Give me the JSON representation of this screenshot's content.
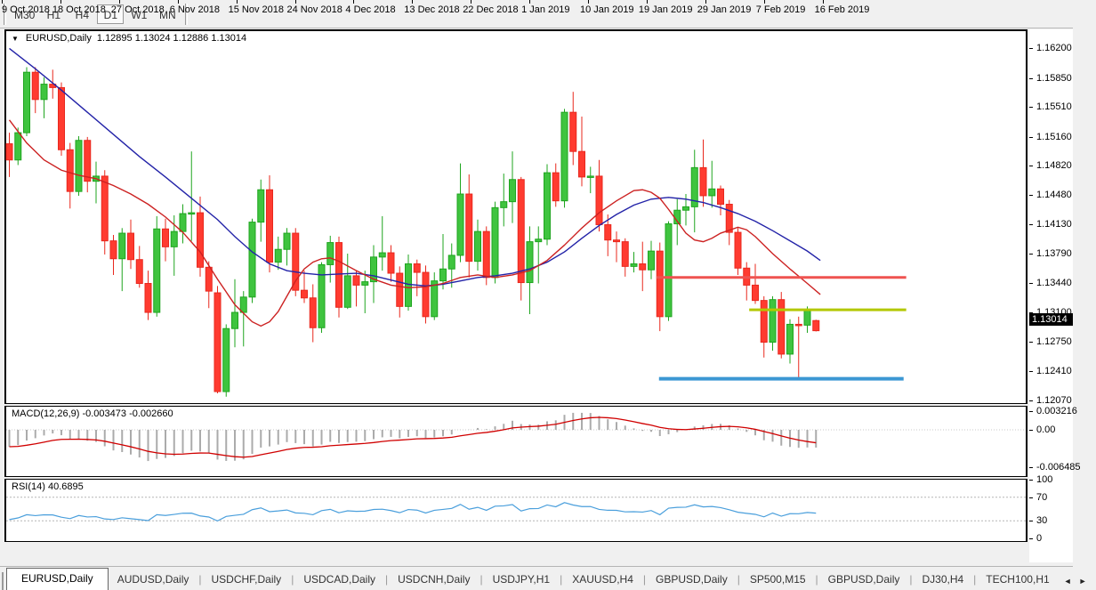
{
  "toolbar": {
    "timeframes": [
      {
        "label": "M30",
        "active": false
      },
      {
        "label": "H1",
        "active": false
      },
      {
        "label": "H4",
        "active": false
      },
      {
        "label": "D1",
        "active": true
      },
      {
        "label": "W1",
        "active": false
      },
      {
        "label": "MN",
        "active": false
      }
    ]
  },
  "chart_header": {
    "dropdown_icon": "▼",
    "symbol": "EURUSD,Daily",
    "ohlc_text": "1.12895 1.13024 1.12886 1.13014"
  },
  "price_axis": {
    "ticks": [
      "1.16200",
      "1.15850",
      "1.15510",
      "1.15160",
      "1.14820",
      "1.14480",
      "1.14130",
      "1.13790",
      "1.13440",
      "1.13100",
      "1.12750",
      "1.12410",
      "1.12070"
    ],
    "current_price": "1.13014"
  },
  "indicators": {
    "macd": {
      "label": "MACD(12,26,9) -0.003473 -0.002660",
      "axis": [
        "0.003216",
        "0.00",
        "-0.006485"
      ]
    },
    "rsi": {
      "label": "RSI(14) 40.6895",
      "axis": [
        "100",
        "70",
        "30",
        "0"
      ]
    }
  },
  "date_axis": {
    "labels": [
      "9 Oct 2018",
      "18 Oct 2018",
      "27 Oct 2018",
      "6 Nov 2018",
      "15 Nov 2018",
      "24 Nov 2018",
      "4 Dec 2018",
      "13 Dec 2018",
      "22 Dec 2018",
      "1 Jan 2019",
      "10 Jan 2019",
      "19 Jan 2019",
      "29 Jan 2019",
      "7 Feb 2019",
      "16 Feb 2019"
    ]
  },
  "tabs": {
    "items": [
      {
        "label": "EURUSD,Daily",
        "active": true
      },
      {
        "label": "AUDUSD,Daily",
        "active": false
      },
      {
        "label": "USDCHF,Daily",
        "active": false
      },
      {
        "label": "USDCAD,Daily",
        "active": false
      },
      {
        "label": "USDCNH,Daily",
        "active": false
      },
      {
        "label": "USDJPY,H1",
        "active": false
      },
      {
        "label": "XAUUSD,H4",
        "active": false
      },
      {
        "label": "GBPUSD,Daily",
        "active": false
      },
      {
        "label": "SP500,M15",
        "active": false
      },
      {
        "label": "GBPUSD,Daily",
        "active": false
      },
      {
        "label": "DJ30,H4",
        "active": false
      },
      {
        "label": "TECH100,H1",
        "active": false
      }
    ],
    "scroll_left": "◄",
    "scroll_right": "►"
  },
  "chart_data": {
    "type": "candlestick",
    "symbol": "EURUSD",
    "timeframe": "Daily",
    "last_bar": {
      "open": 1.12895,
      "high": 1.13024,
      "low": 1.12886,
      "close": 1.13014
    },
    "price_ticks": [
      1.162,
      1.1585,
      1.1551,
      1.1516,
      1.1482,
      1.1448,
      1.1413,
      1.1379,
      1.1344,
      1.131,
      1.1275,
      1.1241,
      1.1207
    ],
    "x_labels": [
      "9 Oct 2018",
      "18 Oct 2018",
      "27 Oct 2018",
      "6 Nov 2018",
      "15 Nov 2018",
      "24 Nov 2018",
      "4 Dec 2018",
      "13 Dec 2018",
      "22 Dec 2018",
      "1 Jan 2019",
      "10 Jan 2019",
      "19 Jan 2019",
      "29 Jan 2019",
      "7 Feb 2019",
      "16 Feb 2019"
    ],
    "candles": [
      [
        1.1509,
        1.1522,
        1.147,
        1.149
      ],
      [
        1.149,
        1.1528,
        1.1484,
        1.1522
      ],
      [
        1.1522,
        1.1599,
        1.1518,
        1.1593
      ],
      [
        1.1593,
        1.1599,
        1.1545,
        1.1561
      ],
      [
        1.1561,
        1.1587,
        1.1539,
        1.1579
      ],
      [
        1.1579,
        1.1596,
        1.1562,
        1.1575
      ],
      [
        1.1575,
        1.1581,
        1.1495,
        1.1502
      ],
      [
        1.1502,
        1.151,
        1.1433,
        1.1453
      ],
      [
        1.1453,
        1.1518,
        1.1448,
        1.1513
      ],
      [
        1.1513,
        1.1517,
        1.1452,
        1.1465
      ],
      [
        1.1465,
        1.1488,
        1.1439,
        1.1471
      ],
      [
        1.1471,
        1.1478,
        1.1379,
        1.1395
      ],
      [
        1.1395,
        1.1402,
        1.1355,
        1.1374
      ],
      [
        1.1374,
        1.141,
        1.1336,
        1.1404
      ],
      [
        1.1404,
        1.142,
        1.1362,
        1.1373
      ],
      [
        1.1373,
        1.1389,
        1.134,
        1.1345
      ],
      [
        1.1345,
        1.136,
        1.1302,
        1.1311
      ],
      [
        1.1311,
        1.1424,
        1.1306,
        1.1409
      ],
      [
        1.1409,
        1.1421,
        1.1371,
        1.1388
      ],
      [
        1.1388,
        1.1425,
        1.1354,
        1.1406
      ],
      [
        1.1406,
        1.1438,
        1.1392,
        1.1427
      ],
      [
        1.1427,
        1.15,
        1.1395,
        1.1428
      ],
      [
        1.1428,
        1.1447,
        1.1353,
        1.1364
      ],
      [
        1.1364,
        1.1371,
        1.1316,
        1.1336
      ],
      [
        1.1334,
        1.1342,
        1.1216,
        1.1218
      ],
      [
        1.1218,
        1.1297,
        1.1212,
        1.1292
      ],
      [
        1.1292,
        1.135,
        1.127,
        1.1311
      ],
      [
        1.1311,
        1.1336,
        1.1271,
        1.1329
      ],
      [
        1.1329,
        1.1421,
        1.1322,
        1.1417
      ],
      [
        1.1417,
        1.1467,
        1.1394,
        1.1455
      ],
      [
        1.1455,
        1.1472,
        1.1358,
        1.137
      ],
      [
        1.137,
        1.14,
        1.1361,
        1.1385
      ],
      [
        1.1385,
        1.141,
        1.1366,
        1.1404
      ],
      [
        1.1404,
        1.141,
        1.133,
        1.1337
      ],
      [
        1.1337,
        1.136,
        1.1322,
        1.1328
      ],
      [
        1.1328,
        1.1344,
        1.1276,
        1.1293
      ],
      [
        1.1293,
        1.137,
        1.1287,
        1.1367
      ],
      [
        1.1367,
        1.1401,
        1.1346,
        1.1393
      ],
      [
        1.1393,
        1.14,
        1.1305,
        1.1317
      ],
      [
        1.1317,
        1.138,
        1.1315,
        1.1354
      ],
      [
        1.1354,
        1.136,
        1.1318,
        1.1343
      ],
      [
        1.1343,
        1.136,
        1.131,
        1.1347
      ],
      [
        1.1347,
        1.139,
        1.1322,
        1.1376
      ],
      [
        1.1376,
        1.1424,
        1.136,
        1.1381
      ],
      [
        1.1381,
        1.139,
        1.1347,
        1.1357
      ],
      [
        1.1357,
        1.1365,
        1.1305,
        1.1318
      ],
      [
        1.1318,
        1.1379,
        1.1313,
        1.1368
      ],
      [
        1.1368,
        1.1373,
        1.133,
        1.1358
      ],
      [
        1.1358,
        1.1366,
        1.1298,
        1.1306
      ],
      [
        1.1306,
        1.1358,
        1.1302,
        1.1348
      ],
      [
        1.1348,
        1.1403,
        1.1338,
        1.1362
      ],
      [
        1.1362,
        1.1392,
        1.134,
        1.1378
      ],
      [
        1.1378,
        1.1486,
        1.137,
        1.145
      ],
      [
        1.145,
        1.1473,
        1.1352,
        1.1371
      ],
      [
        1.1371,
        1.142,
        1.136,
        1.1406
      ],
      [
        1.1406,
        1.1412,
        1.1343,
        1.1352
      ],
      [
        1.1352,
        1.1441,
        1.1345,
        1.1434
      ],
      [
        1.1434,
        1.1474,
        1.1412,
        1.1441
      ],
      [
        1.1441,
        1.15,
        1.1416,
        1.1467
      ],
      [
        1.1467,
        1.147,
        1.1325,
        1.1346
      ],
      [
        1.1346,
        1.1412,
        1.1309,
        1.1394
      ],
      [
        1.1394,
        1.1412,
        1.1345,
        1.1397
      ],
      [
        1.1397,
        1.1485,
        1.139,
        1.1475
      ],
      [
        1.1475,
        1.1486,
        1.1435,
        1.1442
      ],
      [
        1.1442,
        1.155,
        1.1434,
        1.1546
      ],
      [
        1.1546,
        1.157,
        1.1484,
        1.15
      ],
      [
        1.15,
        1.1541,
        1.1459,
        1.147
      ],
      [
        1.147,
        1.1482,
        1.1451,
        1.1471
      ],
      [
        1.1471,
        1.149,
        1.1406,
        1.1414
      ],
      [
        1.1414,
        1.1426,
        1.1377,
        1.1396
      ],
      [
        1.1396,
        1.1406,
        1.137,
        1.1394
      ],
      [
        1.1394,
        1.1398,
        1.1353,
        1.1365
      ],
      [
        1.1365,
        1.1382,
        1.1358,
        1.1368
      ],
      [
        1.1368,
        1.1394,
        1.1336,
        1.1361
      ],
      [
        1.1361,
        1.1395,
        1.135,
        1.1383
      ],
      [
        1.1383,
        1.1393,
        1.1289,
        1.1306
      ],
      [
        1.1306,
        1.1418,
        1.1301,
        1.1415
      ],
      [
        1.1415,
        1.1444,
        1.139,
        1.1431
      ],
      [
        1.1431,
        1.145,
        1.1413,
        1.1435
      ],
      [
        1.1435,
        1.1502,
        1.1405,
        1.1481
      ],
      [
        1.1481,
        1.1514,
        1.1435,
        1.1448
      ],
      [
        1.1448,
        1.1489,
        1.1434,
        1.1456
      ],
      [
        1.1456,
        1.146,
        1.1425,
        1.1438
      ],
      [
        1.1438,
        1.1443,
        1.139,
        1.1405
      ],
      [
        1.1405,
        1.141,
        1.1355,
        1.1363
      ],
      [
        1.1363,
        1.137,
        1.1325,
        1.1343
      ],
      [
        1.1343,
        1.1368,
        1.1321,
        1.1325
      ],
      [
        1.1325,
        1.133,
        1.1258,
        1.1276
      ],
      [
        1.1276,
        1.133,
        1.1266,
        1.1326
      ],
      [
        1.1326,
        1.1335,
        1.1257,
        1.1262
      ],
      [
        1.1262,
        1.1303,
        1.1251,
        1.1297
      ],
      [
        1.1297,
        1.1306,
        1.1234,
        1.1296
      ],
      [
        1.1296,
        1.1318,
        1.1287,
        1.1313
      ],
      [
        1.12895,
        1.13024,
        1.12886,
        1.13014,
        "r"
      ]
    ],
    "overlays": {
      "ma_blue": {
        "color": "#2323a8",
        "points": [
          [
            0,
            1.1621
          ],
          [
            3,
            1.1597
          ],
          [
            6,
            1.1572
          ],
          [
            9,
            1.1546
          ],
          [
            12,
            1.152
          ],
          [
            15,
            1.1494
          ],
          [
            18,
            1.147
          ],
          [
            21,
            1.1445
          ],
          [
            24,
            1.142
          ],
          [
            26,
            1.14
          ],
          [
            28,
            1.1382
          ],
          [
            30,
            1.1368
          ],
          [
            32,
            1.136
          ],
          [
            34,
            1.1357
          ],
          [
            36,
            1.1355
          ],
          [
            38,
            1.1356
          ],
          [
            40,
            1.1357
          ],
          [
            42,
            1.1354
          ],
          [
            44,
            1.1349
          ],
          [
            46,
            1.1344
          ],
          [
            48,
            1.1342
          ],
          [
            50,
            1.1344
          ],
          [
            52,
            1.1348
          ],
          [
            54,
            1.1352
          ],
          [
            56,
            1.1354
          ],
          [
            58,
            1.1357
          ],
          [
            60,
            1.1362
          ],
          [
            62,
            1.137
          ],
          [
            64,
            1.1382
          ],
          [
            66,
            1.1398
          ],
          [
            68,
            1.1413
          ],
          [
            70,
            1.1426
          ],
          [
            72,
            1.1437
          ],
          [
            74,
            1.1444
          ],
          [
            76,
            1.1446
          ],
          [
            78,
            1.1444
          ],
          [
            80,
            1.144
          ],
          [
            82,
            1.1434
          ],
          [
            84,
            1.1427
          ],
          [
            86,
            1.1418
          ],
          [
            88,
            1.1407
          ],
          [
            90,
            1.1395
          ],
          [
            92,
            1.1383
          ],
          [
            93.5,
            1.1372
          ]
        ]
      },
      "ma_red": {
        "color": "#cc2222",
        "points": [
          [
            0,
            1.1537
          ],
          [
            2,
            1.151
          ],
          [
            4,
            1.149
          ],
          [
            6,
            1.1478
          ],
          [
            8,
            1.1472
          ],
          [
            10,
            1.1468
          ],
          [
            12,
            1.146
          ],
          [
            14,
            1.145
          ],
          [
            16,
            1.1438
          ],
          [
            18,
            1.1423
          ],
          [
            20,
            1.1405
          ],
          [
            22,
            1.1382
          ],
          [
            24,
            1.135
          ],
          [
            26,
            1.132
          ],
          [
            28,
            1.13
          ],
          [
            29,
            1.1295
          ],
          [
            30,
            1.13
          ],
          [
            31,
            1.1312
          ],
          [
            32,
            1.133
          ],
          [
            33,
            1.1348
          ],
          [
            34,
            1.1362
          ],
          [
            35,
            1.137
          ],
          [
            36,
            1.1374
          ],
          [
            37,
            1.1375
          ],
          [
            38,
            1.1371
          ],
          [
            40,
            1.136
          ],
          [
            42,
            1.135
          ],
          [
            44,
            1.1343
          ],
          [
            46,
            1.134
          ],
          [
            48,
            1.1341
          ],
          [
            50,
            1.1345
          ],
          [
            52,
            1.1352
          ],
          [
            54,
            1.1355
          ],
          [
            56,
            1.1352
          ],
          [
            58,
            1.1355
          ],
          [
            60,
            1.136
          ],
          [
            62,
            1.1372
          ],
          [
            64,
            1.139
          ],
          [
            66,
            1.141
          ],
          [
            68,
            1.1428
          ],
          [
            70,
            1.1442
          ],
          [
            72,
            1.1454
          ],
          [
            73,
            1.1455
          ],
          [
            74,
            1.1452
          ],
          [
            75,
            1.1445
          ],
          [
            76,
            1.1432
          ],
          [
            77,
            1.1418
          ],
          [
            78,
            1.1404
          ],
          [
            79,
            1.1396
          ],
          [
            80,
            1.1394
          ],
          [
            81,
            1.1398
          ],
          [
            82,
            1.1404
          ],
          [
            84,
            1.1411
          ],
          [
            85,
            1.1408
          ],
          [
            86,
            1.14
          ],
          [
            88,
            1.138
          ],
          [
            90,
            1.1362
          ],
          [
            92,
            1.1345
          ],
          [
            93.5,
            1.1332
          ]
        ]
      }
    },
    "hlines": [
      {
        "name": "resistance-red",
        "price": 1.1352,
        "color": "#ef5350",
        "x1": 74.6,
        "x2": 103.4,
        "width": 3
      },
      {
        "name": "level-olive",
        "price": 1.1314,
        "color": "#b3c800",
        "x1": 85.3,
        "x2": 103.4,
        "width": 3
      },
      {
        "name": "support-blue",
        "price": 1.1233,
        "color": "#3b97d3",
        "x1": 74.9,
        "x2": 103.1,
        "width": 4
      }
    ],
    "macd": {
      "params": [
        12,
        26,
        9
      ],
      "current_macd": -0.003473,
      "current_signal": -0.00266,
      "scale_max": 0.003216,
      "scale_min": -0.006485
    },
    "rsi": {
      "period": 14,
      "current": 40.6895,
      "levels": [
        70,
        30
      ],
      "scale": [
        0,
        100
      ]
    },
    "colors": {
      "up": "#3fc43f",
      "up_border": "#1fa51f",
      "down": "#ff3b30",
      "down_border": "#e8281e",
      "macd_hist": "#ababab",
      "macd_signal": "#d00000",
      "rsi_line": "#4a9fdc"
    }
  }
}
